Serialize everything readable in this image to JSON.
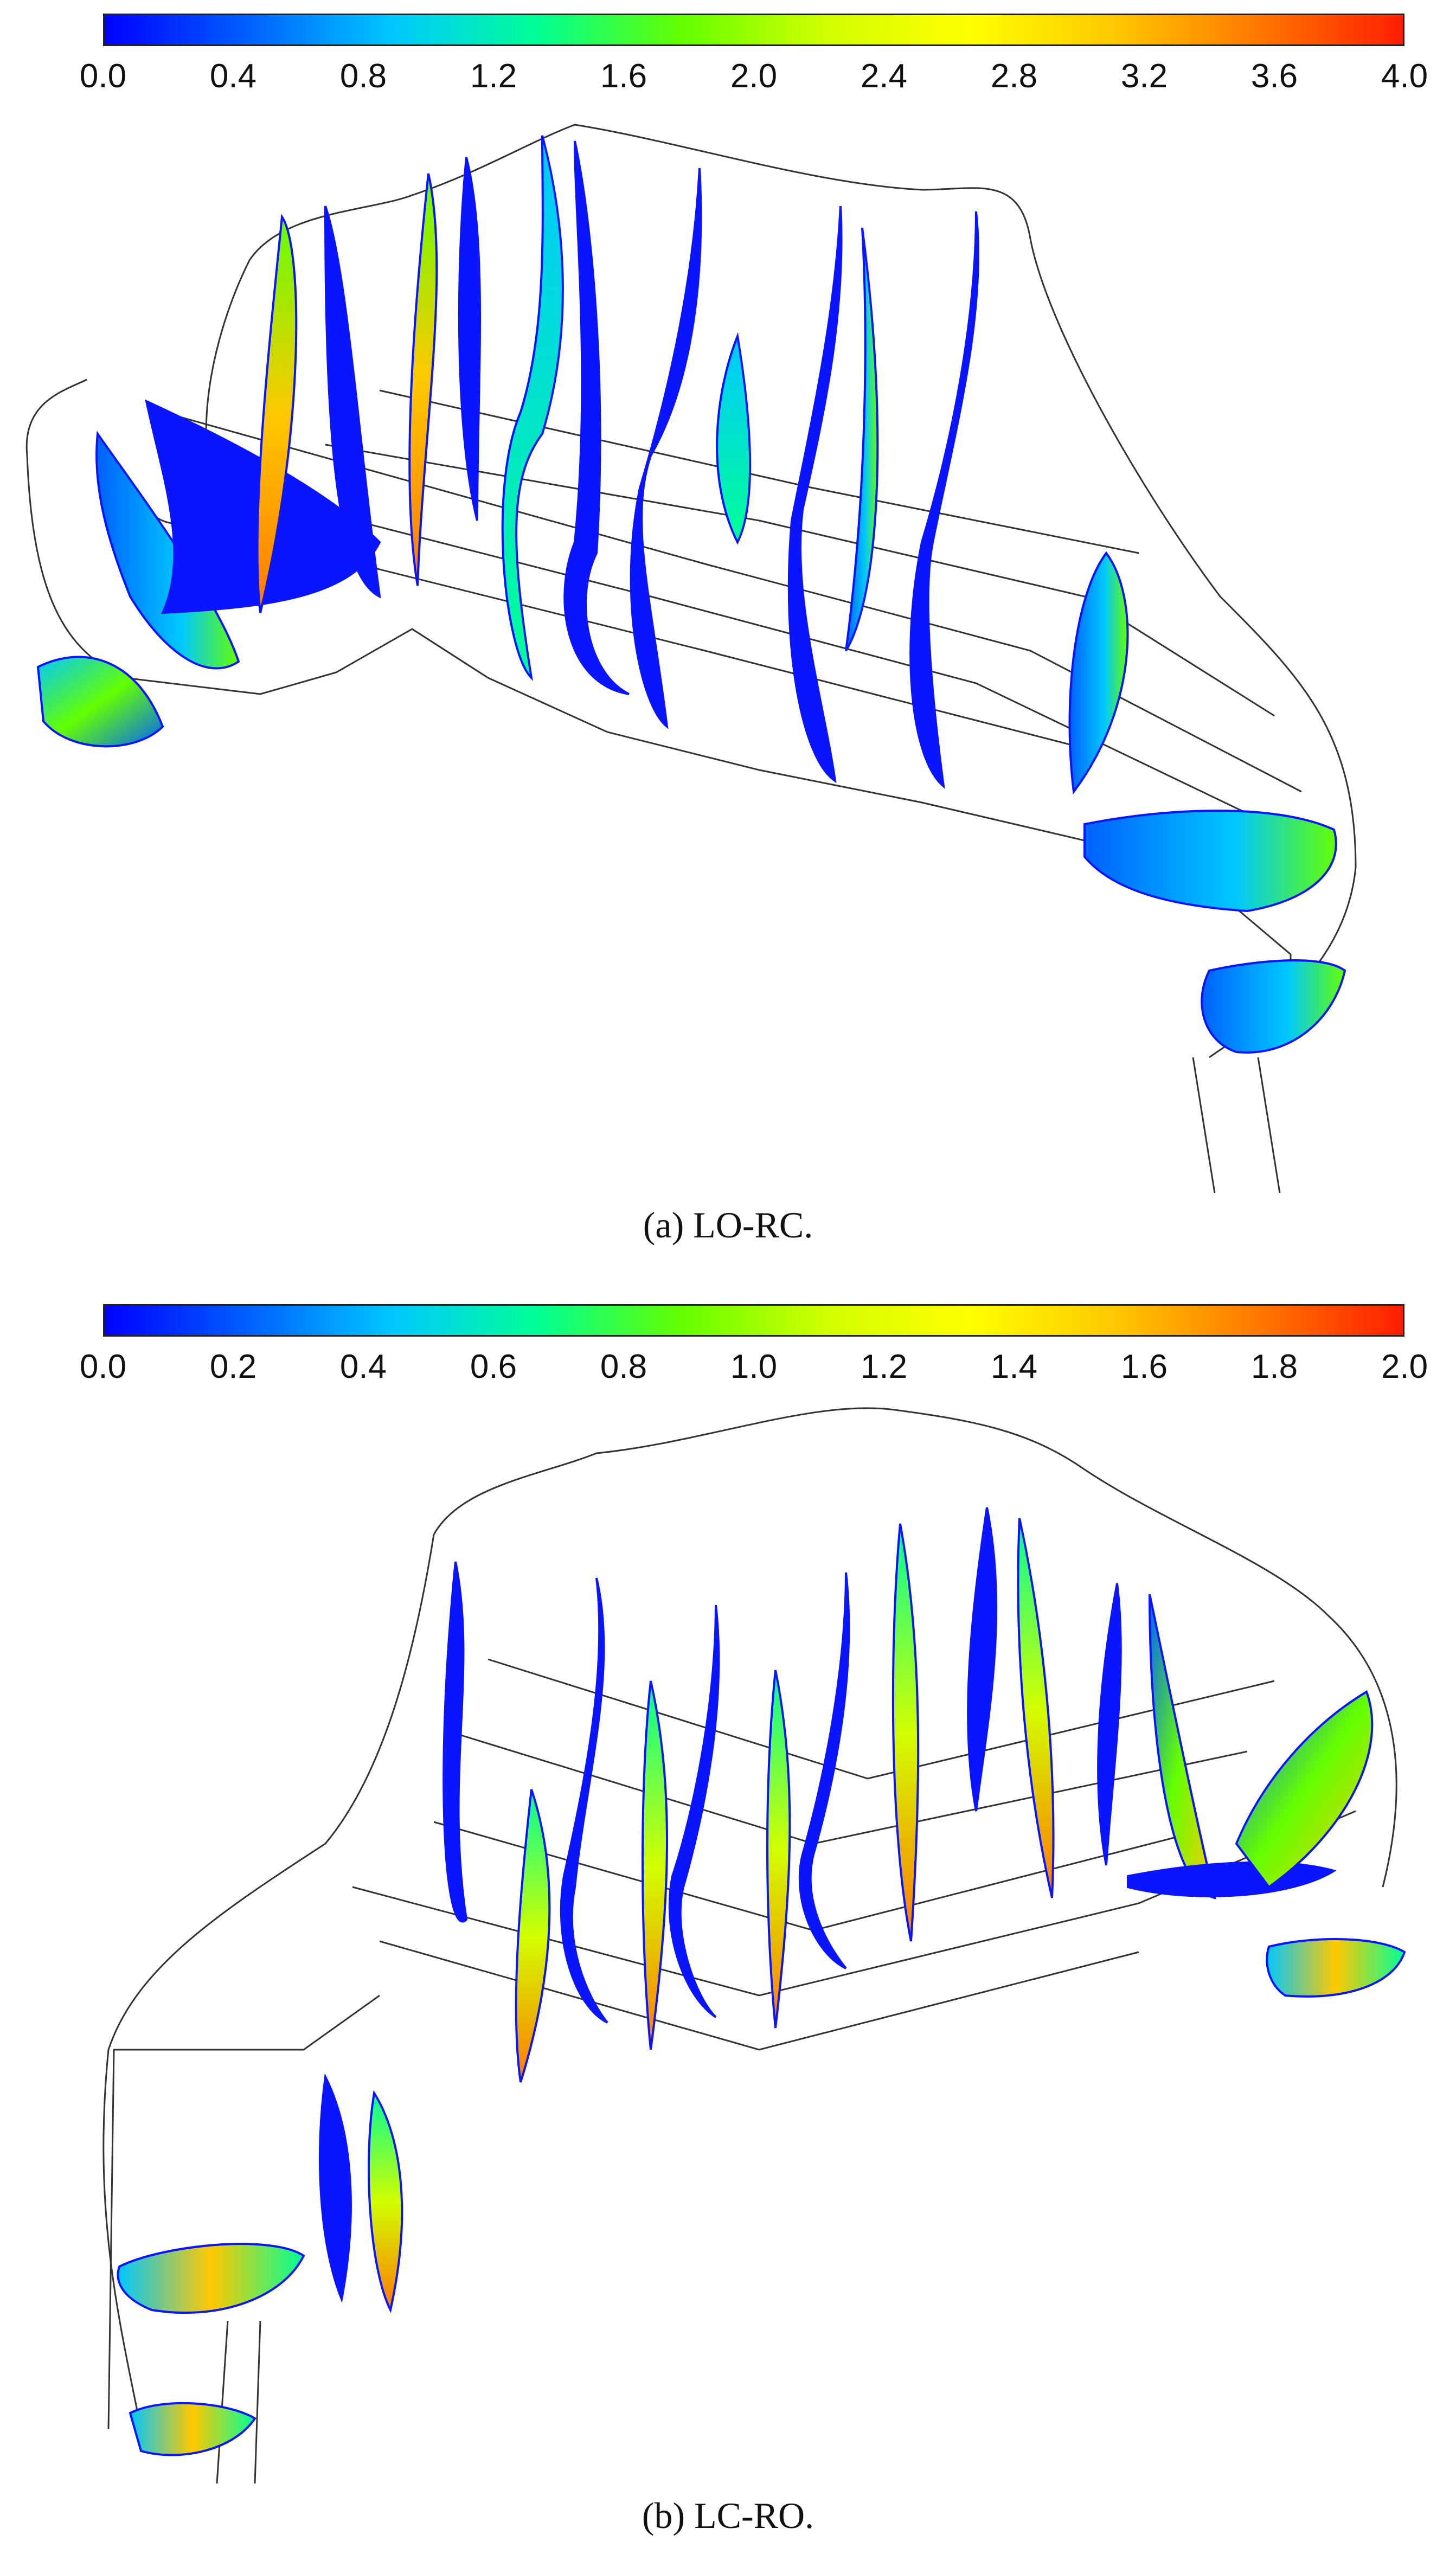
{
  "colors": {
    "colormap": [
      "#0000ff",
      "#0060ff",
      "#00c8ff",
      "#00ff96",
      "#64ff00",
      "#d2ff00",
      "#ffff00",
      "#ffc800",
      "#ff7800",
      "#ff1e00"
    ],
    "outline": "#333333",
    "low": "#0a14ff"
  },
  "panels": [
    {
      "id": "a",
      "caption": "(a)  LO-RC.",
      "colorbar": {
        "min": 0.0,
        "max": 4.0,
        "tick_labels": [
          "0.0",
          "0.4",
          "0.8",
          "1.2",
          "1.6",
          "2.0",
          "2.4",
          "2.8",
          "3.2",
          "3.6",
          "4.0"
        ]
      }
    },
    {
      "id": "b",
      "caption": "(b)  LC-RO.",
      "colorbar": {
        "min": 0.0,
        "max": 2.0,
        "tick_labels": [
          "0.0",
          "0.2",
          "0.4",
          "0.6",
          "0.8",
          "1.0",
          "1.2",
          "1.4",
          "1.6",
          "1.8",
          "2.0"
        ]
      }
    }
  ]
}
